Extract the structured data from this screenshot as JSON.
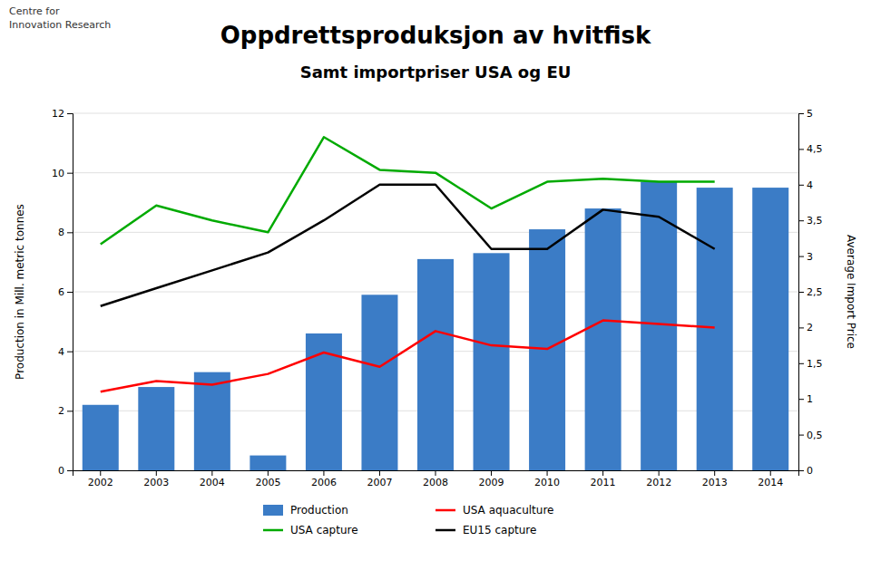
{
  "chart_data": {
    "type": "bar",
    "title": "Oppdrettsproduksjon av hvitfisk",
    "subtitle": "Samt importpriser USA og EU",
    "annotations": [
      "Centre for",
      "Innovation Research"
    ],
    "categories": [
      "2002",
      "2003",
      "2004",
      "2005",
      "2006",
      "2007",
      "2008",
      "2009",
      "2010",
      "2011",
      "2012",
      "2013",
      "2014"
    ],
    "series": [
      {
        "name": "Production",
        "type": "bar",
        "color": "#3B7CC6",
        "values": [
          2.2,
          2.8,
          3.3,
          0.5,
          4.6,
          5.9,
          7.1,
          7.3,
          8.1,
          8.8,
          9.7,
          9.5,
          9.5
        ]
      },
      {
        "name": "USA aquaculture",
        "type": "line",
        "axis": "y2",
        "color": "#FF0000",
        "values": [
          1.1,
          1.25,
          1.2,
          1.35,
          1.65,
          1.45,
          1.95,
          1.75,
          1.7,
          2.1,
          2.05,
          2.0,
          null
        ]
      },
      {
        "name": "USA capture",
        "type": "line",
        "color": "#00AA00",
        "values": [
          7.6,
          8.9,
          8.4,
          8.0,
          11.2,
          10.1,
          10.0,
          8.8,
          9.7,
          9.8,
          9.7,
          9.7,
          null
        ]
      },
      {
        "name": "EU15 capture",
        "type": "line",
        "axis": "y2",
        "color": "#000000",
        "values": [
          2.3,
          2.55,
          2.8,
          3.05,
          3.5,
          4.0,
          4.0,
          3.1,
          3.1,
          3.65,
          3.55,
          3.1,
          null
        ]
      }
    ],
    "y_label": "Production in Mill. metric tonnes",
    "y2_label": "Average Import Price",
    "ylim": [
      0,
      12
    ],
    "yticks": [
      0,
      2,
      4,
      6,
      8,
      10,
      12
    ],
    "y2lim": [
      0,
      5
    ],
    "y2ticks": [
      0,
      {
        "value": 0.5,
        "label": "0,5"
      },
      1,
      {
        "value": 1.5,
        "label": "1,5"
      },
      2,
      {
        "value": 2.5,
        "label": "2,5"
      },
      3,
      {
        "value": 3.5,
        "label": "3,5"
      },
      4,
      {
        "value": 4.5,
        "label": "4,5"
      },
      5
    ],
    "grid": true,
    "legend": "bottom"
  }
}
